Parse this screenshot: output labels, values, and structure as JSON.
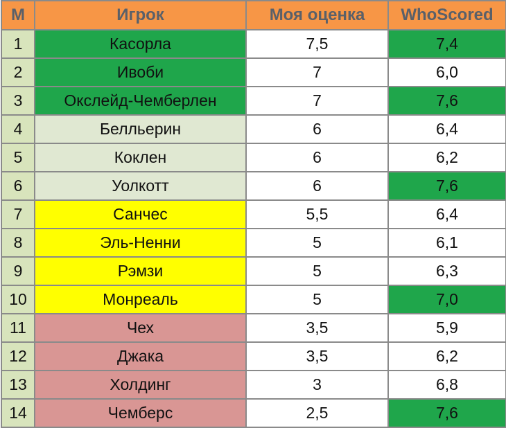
{
  "colors": {
    "header_bg": "#f79646",
    "header_text": "#5a6069",
    "number_col_bg": "#d8e4bc",
    "tier_green": "#1fa64b",
    "tier_light_green": "#e0e8d2",
    "tier_yellow": "#ffff00",
    "tier_pink": "#d99694",
    "whoscored_highlight": "#1fa64b",
    "plain": "#ffffff"
  },
  "table": {
    "headers": {
      "num": "М",
      "player": "Игрок",
      "my_rating": "Моя оценка",
      "whoscored": "WhoScored"
    },
    "rows": [
      {
        "num": "1",
        "player": "Касорла",
        "my_rating": "7,5",
        "whoscored": "7,4",
        "tier": "green",
        "ws_highlight": true
      },
      {
        "num": "2",
        "player": "Ивоби",
        "my_rating": "7",
        "whoscored": "6,0",
        "tier": "green",
        "ws_highlight": false
      },
      {
        "num": "3",
        "player": "Окслейд-Чемберлен",
        "my_rating": "7",
        "whoscored": "7,6",
        "tier": "green",
        "ws_highlight": true
      },
      {
        "num": "4",
        "player": "Белльерин",
        "my_rating": "6",
        "whoscored": "6,4",
        "tier": "light_green",
        "ws_highlight": false
      },
      {
        "num": "5",
        "player": "Коклен",
        "my_rating": "6",
        "whoscored": "6,2",
        "tier": "light_green",
        "ws_highlight": false
      },
      {
        "num": "6",
        "player": "Уолкотт",
        "my_rating": "6",
        "whoscored": "7,6",
        "tier": "light_green",
        "ws_highlight": true
      },
      {
        "num": "7",
        "player": "Санчес",
        "my_rating": "5,5",
        "whoscored": "6,4",
        "tier": "yellow",
        "ws_highlight": false
      },
      {
        "num": "8",
        "player": "Эль-Ненни",
        "my_rating": "5",
        "whoscored": "6,1",
        "tier": "yellow",
        "ws_highlight": false
      },
      {
        "num": "9",
        "player": "Рэмзи",
        "my_rating": "5",
        "whoscored": "6,3",
        "tier": "yellow",
        "ws_highlight": false
      },
      {
        "num": "10",
        "player": "Монреаль",
        "my_rating": "5",
        "whoscored": "7,0",
        "tier": "yellow",
        "ws_highlight": true
      },
      {
        "num": "11",
        "player": "Чех",
        "my_rating": "3,5",
        "whoscored": "5,9",
        "tier": "pink",
        "ws_highlight": false
      },
      {
        "num": "12",
        "player": "Джака",
        "my_rating": "3,5",
        "whoscored": "6,2",
        "tier": "pink",
        "ws_highlight": false
      },
      {
        "num": "13",
        "player": "Холдинг",
        "my_rating": "3",
        "whoscored": "6,8",
        "tier": "pink",
        "ws_highlight": false
      },
      {
        "num": "14",
        "player": "Чемберс",
        "my_rating": "2,5",
        "whoscored": "7,6",
        "tier": "pink",
        "ws_highlight": true
      }
    ]
  }
}
